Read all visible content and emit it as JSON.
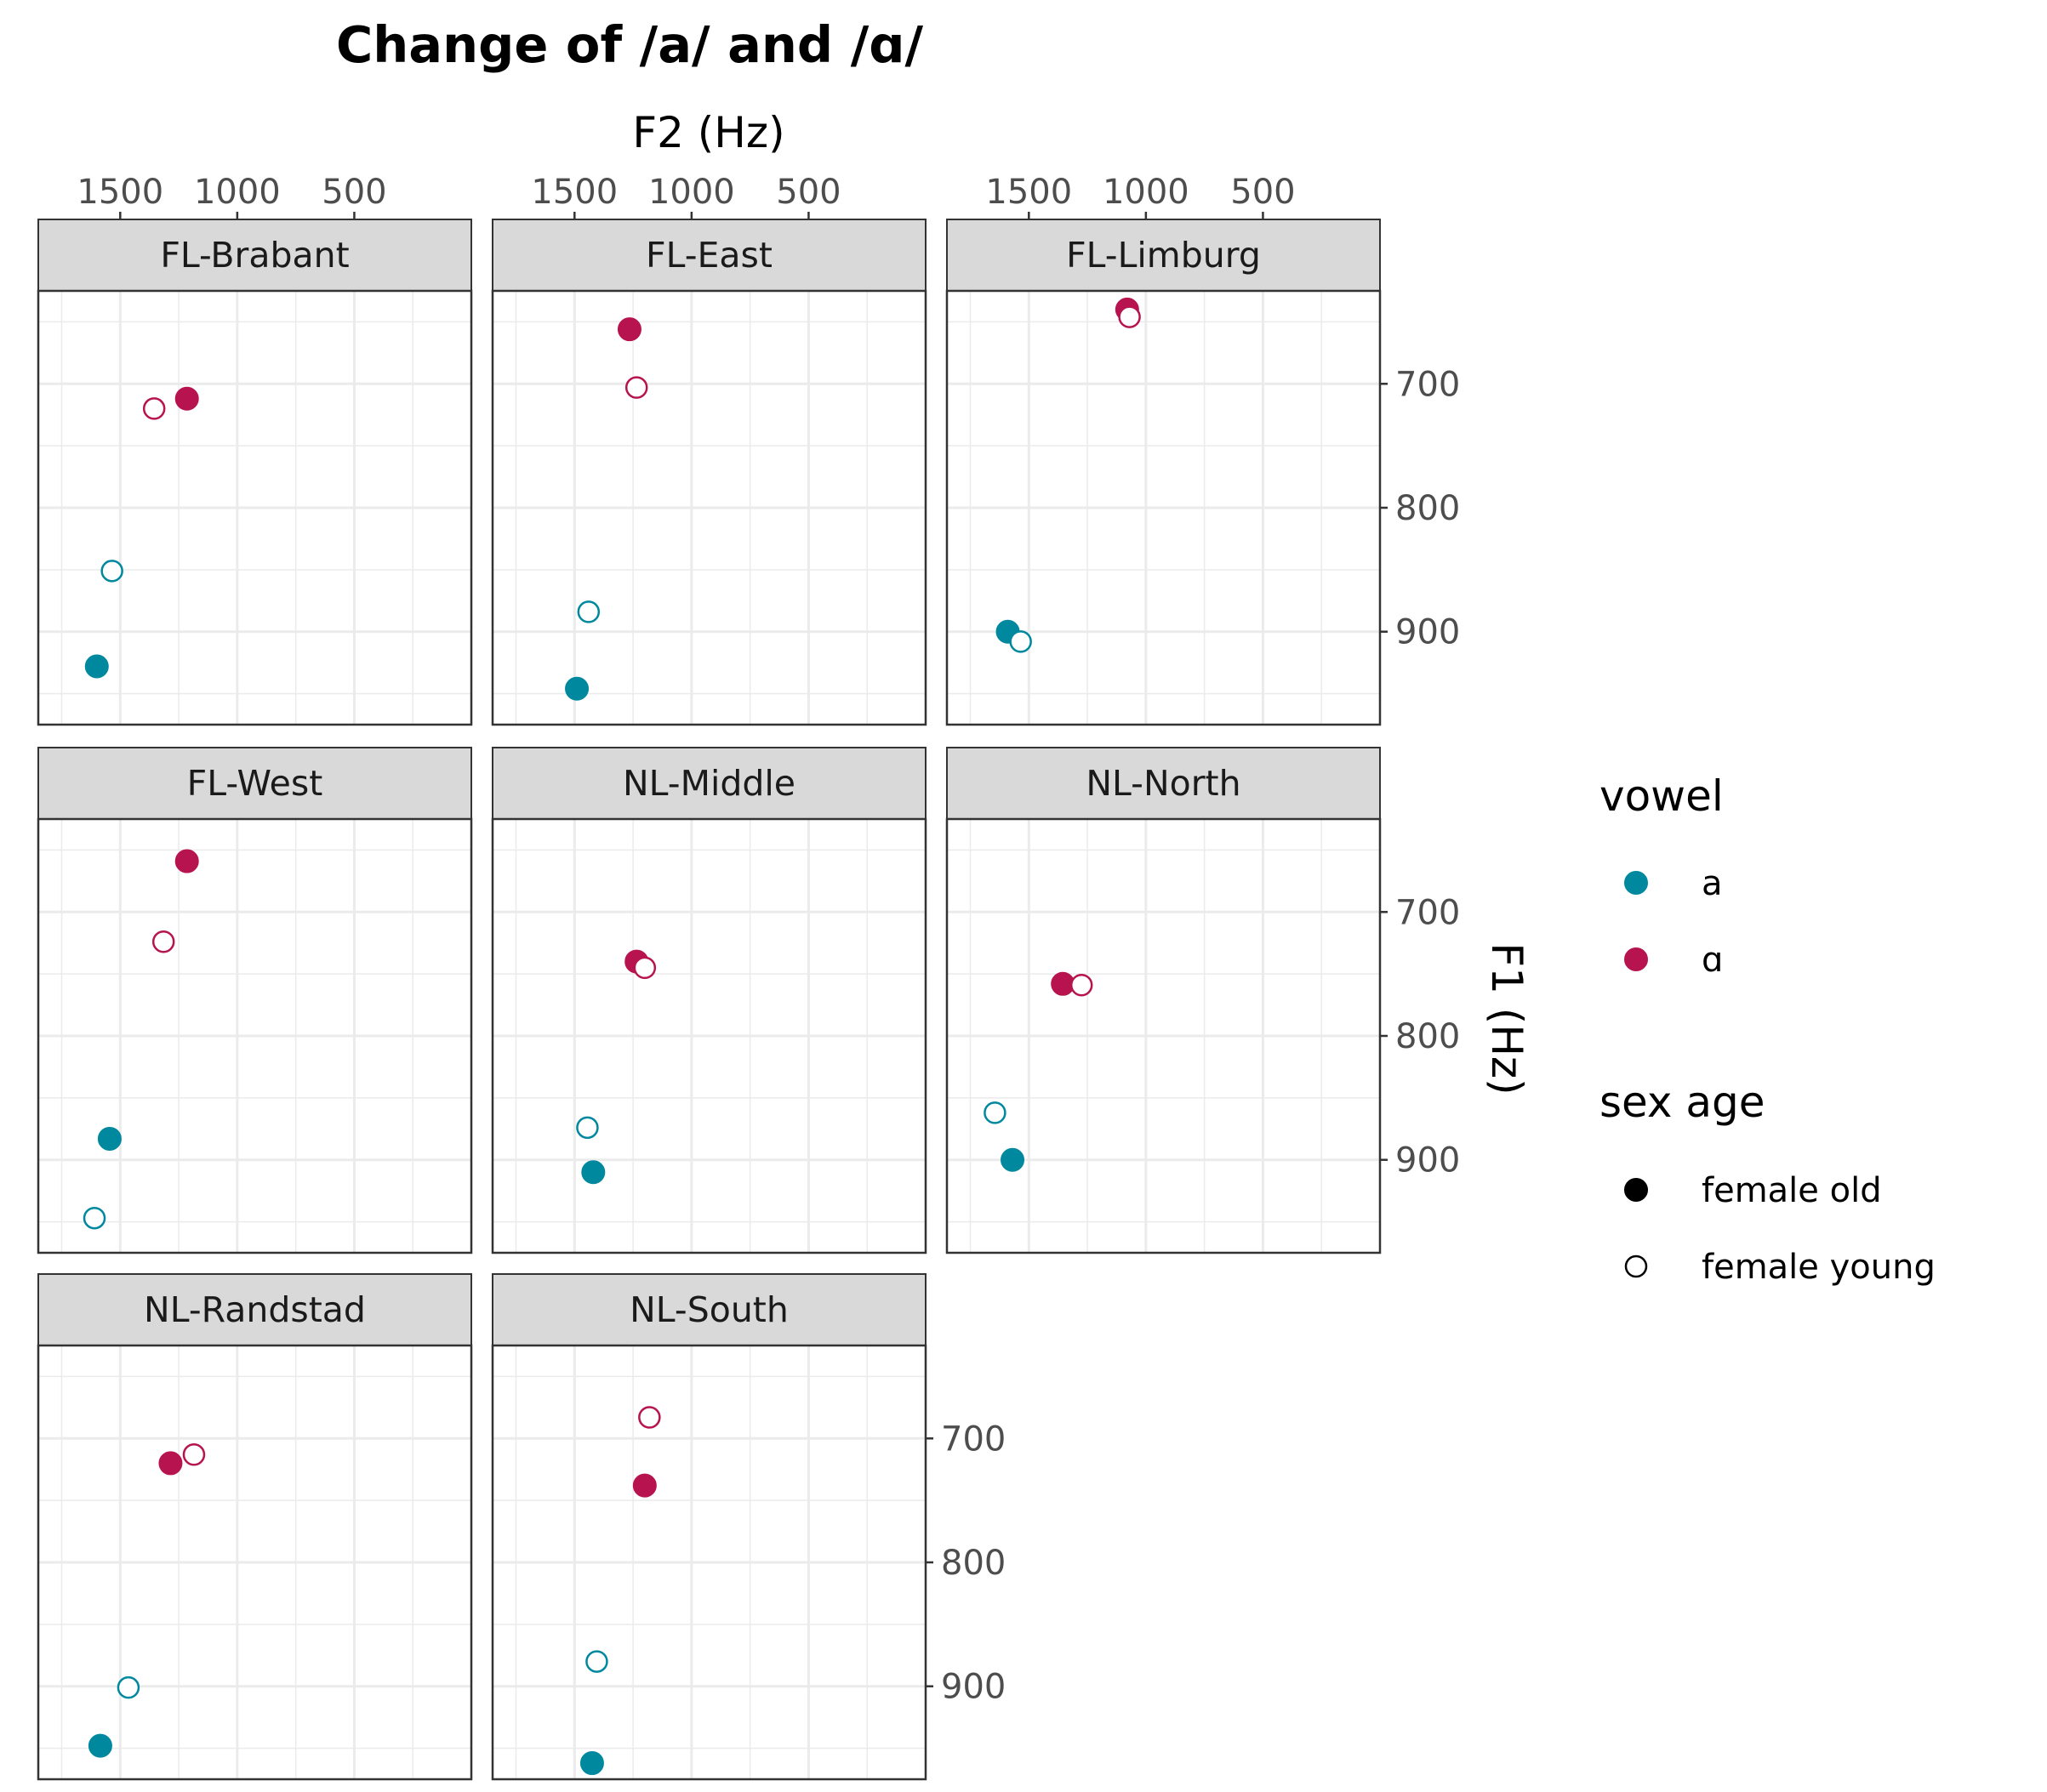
{
  "chart_data": {
    "type": "scatter",
    "title": "Change of /a/ and /ɑ/",
    "xlabel": "F2 (Hz)",
    "ylabel": "F1 (Hz)",
    "x_reversed": true,
    "y_reversed": true,
    "xlim": [
      1850,
      0
    ],
    "ylim": [
      625,
      975
    ],
    "x_ticks": [
      1500,
      1000,
      500
    ],
    "x_tick_labels": [
      "1500",
      "1000",
      "500"
    ],
    "y_ticks": [
      700,
      800,
      900
    ],
    "y_tick_labels": [
      "700",
      "800",
      "900"
    ],
    "x_axis_position": "top",
    "y_axis_position": "right",
    "grid": true,
    "legend_position": "right",
    "legends": [
      {
        "title": "vowel",
        "entries": [
          {
            "label": "a",
            "color": "#00889f"
          },
          {
            "label": "ɑ",
            "color": "#b7144f"
          }
        ]
      },
      {
        "title": "sex age",
        "entries": [
          {
            "label": "female old",
            "fill": "filled"
          },
          {
            "label": "female young",
            "fill": "open"
          }
        ]
      }
    ],
    "colors": {
      "a": "#00889f",
      "ɑ": "#b7144f"
    },
    "panels": [
      {
        "name": "FL-Brabant",
        "points": [
          {
            "vowel": "ɑ",
            "group": "female old",
            "F2": 1215,
            "F1": 712
          },
          {
            "vowel": "ɑ",
            "group": "female young",
            "F2": 1355,
            "F1": 720
          },
          {
            "vowel": "a",
            "group": "female young",
            "F2": 1535,
            "F1": 851
          },
          {
            "vowel": "a",
            "group": "female old",
            "F2": 1600,
            "F1": 928
          }
        ]
      },
      {
        "name": "FL-East",
        "points": [
          {
            "vowel": "ɑ",
            "group": "female old",
            "F2": 1265,
            "F1": 656
          },
          {
            "vowel": "ɑ",
            "group": "female young",
            "F2": 1235,
            "F1": 703
          },
          {
            "vowel": "a",
            "group": "female young",
            "F2": 1440,
            "F1": 884
          },
          {
            "vowel": "a",
            "group": "female old",
            "F2": 1490,
            "F1": 946
          }
        ]
      },
      {
        "name": "FL-Limburg",
        "points": [
          {
            "vowel": "ɑ",
            "group": "female old",
            "F2": 1080,
            "F1": 640
          },
          {
            "vowel": "ɑ",
            "group": "female young",
            "F2": 1070,
            "F1": 646
          },
          {
            "vowel": "a",
            "group": "female old",
            "F2": 1590,
            "F1": 900
          },
          {
            "vowel": "a",
            "group": "female young",
            "F2": 1535,
            "F1": 908
          }
        ]
      },
      {
        "name": "FL-West",
        "points": [
          {
            "vowel": "ɑ",
            "group": "female old",
            "F2": 1215,
            "F1": 659
          },
          {
            "vowel": "ɑ",
            "group": "female young",
            "F2": 1315,
            "F1": 724
          },
          {
            "vowel": "a",
            "group": "female old",
            "F2": 1545,
            "F1": 883
          },
          {
            "vowel": "a",
            "group": "female young",
            "F2": 1610,
            "F1": 947
          }
        ]
      },
      {
        "name": "NL-Middle",
        "points": [
          {
            "vowel": "ɑ",
            "group": "female old",
            "F2": 1235,
            "F1": 740
          },
          {
            "vowel": "ɑ",
            "group": "female young",
            "F2": 1200,
            "F1": 745
          },
          {
            "vowel": "a",
            "group": "female young",
            "F2": 1445,
            "F1": 874
          },
          {
            "vowel": "a",
            "group": "female old",
            "F2": 1420,
            "F1": 910
          }
        ]
      },
      {
        "name": "NL-North",
        "points": [
          {
            "vowel": "ɑ",
            "group": "female old",
            "F2": 1355,
            "F1": 758
          },
          {
            "vowel": "ɑ",
            "group": "female young",
            "F2": 1275,
            "F1": 759
          },
          {
            "vowel": "a",
            "group": "female young",
            "F2": 1645,
            "F1": 862
          },
          {
            "vowel": "a",
            "group": "female old",
            "F2": 1570,
            "F1": 900
          }
        ]
      },
      {
        "name": "NL-Randstad",
        "points": [
          {
            "vowel": "ɑ",
            "group": "female old",
            "F2": 1285,
            "F1": 720
          },
          {
            "vowel": "ɑ",
            "group": "female young",
            "F2": 1185,
            "F1": 713
          },
          {
            "vowel": "a",
            "group": "female young",
            "F2": 1465,
            "F1": 901
          },
          {
            "vowel": "a",
            "group": "female old",
            "F2": 1585,
            "F1": 948
          }
        ]
      },
      {
        "name": "NL-South",
        "points": [
          {
            "vowel": "ɑ",
            "group": "female young",
            "F2": 1180,
            "F1": 683
          },
          {
            "vowel": "ɑ",
            "group": "female old",
            "F2": 1200,
            "F1": 738
          },
          {
            "vowel": "a",
            "group": "female young",
            "F2": 1405,
            "F1": 880
          },
          {
            "vowel": "a",
            "group": "female old",
            "F2": 1425,
            "F1": 962
          }
        ]
      }
    ]
  }
}
